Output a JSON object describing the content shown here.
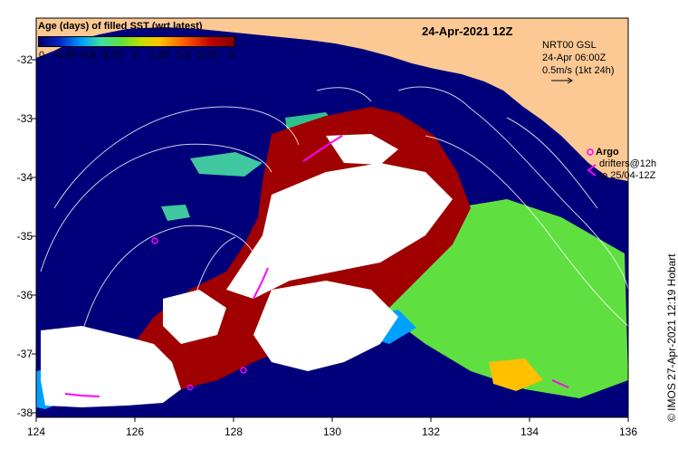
{
  "legend": {
    "title": "Age (days) of filled SST (wrt latest)",
    "ticks": [
      "0",
      "0.25",
      "0.5",
      "0.75",
      "1",
      "1.25",
      "1.5",
      "1.75",
      "2"
    ],
    "tick_values": [
      0,
      0.25,
      0.5,
      0.75,
      1,
      1.25,
      1.5,
      1.75,
      2
    ]
  },
  "date_title": "24-Apr-2021 12Z",
  "current_key": {
    "line1": "NRT00 GSL",
    "line2": "24-Apr 06:00Z",
    "line3": "0.5m/s (1kt 24h)"
  },
  "argo_key": {
    "label": "Argo",
    "line1": "drifters@12h",
    "line2": "to 25/04-12Z"
  },
  "credit": "© IMOS 27-Apr-2021 12:19 Hobart",
  "axes": {
    "x_ticks": [
      "124",
      "126",
      "128",
      "130",
      "132",
      "134",
      "136"
    ],
    "y_ticks": [
      "-32",
      "-33",
      "-34",
      "-35",
      "-36",
      "-37",
      "-38"
    ]
  },
  "colors": {
    "land": "#fcc995",
    "ocean": "#00007a",
    "age_0": "#0020c0",
    "age_half": "#00a0ff",
    "age_1": "#60e040",
    "age_1_5": "#ffc000",
    "age_2": "#a00000",
    "unfilled": "#ffffff",
    "argo": "#ff00ff"
  }
}
